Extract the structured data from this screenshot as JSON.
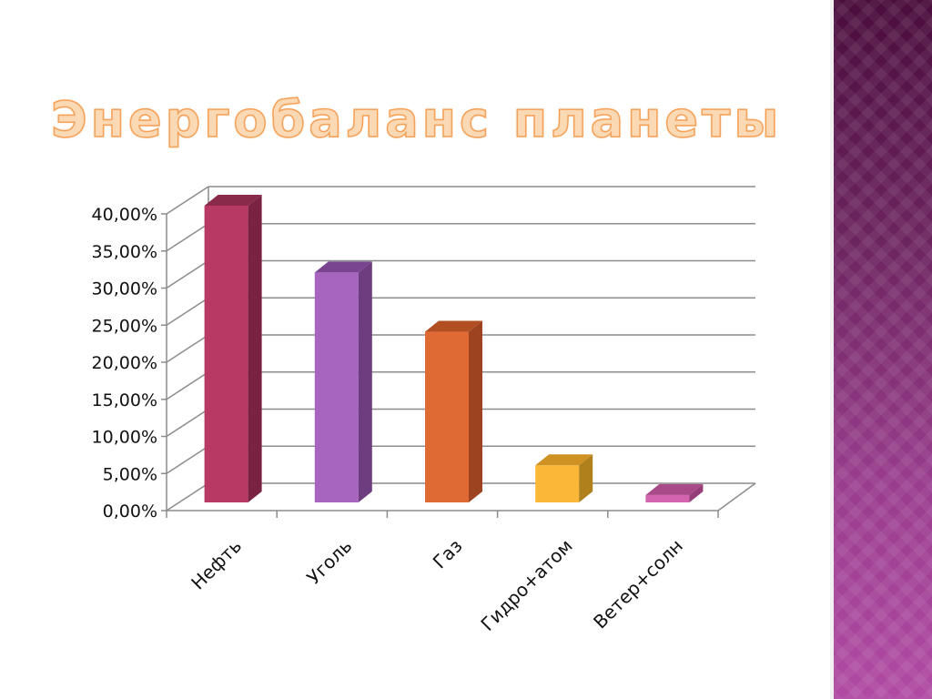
{
  "slide": {
    "title": "Энергобаланс планеты"
  },
  "chart_data": {
    "type": "bar",
    "categories": [
      "Нефть",
      "Уголь",
      "Газ",
      "Гидро+атом",
      "Ветер+солн"
    ],
    "values": [
      40.0,
      31.0,
      23.0,
      5.0,
      1.0
    ],
    "yticks": [
      "0,00%",
      "5,00%",
      "10,00%",
      "15,00%",
      "20,00%",
      "25,00%",
      "30,00%",
      "35,00%",
      "40,00%"
    ],
    "ylim": [
      0,
      40
    ],
    "y_step": 5,
    "grid": true,
    "three_d": true,
    "colors": [
      {
        "front": "#b83a64",
        "top": "#8a2a4a",
        "side": "#7a2242"
      },
      {
        "front": "#a865bf",
        "top": "#7a4590",
        "side": "#6d3d80"
      },
      {
        "front": "#e06a34",
        "top": "#b24f22",
        "side": "#9e4320"
      },
      {
        "front": "#fbb838",
        "top": "#cf9222",
        "side": "#b0801c"
      },
      {
        "front": "#d264b0",
        "top": "#a84a88",
        "side": "#953d78"
      }
    ]
  }
}
